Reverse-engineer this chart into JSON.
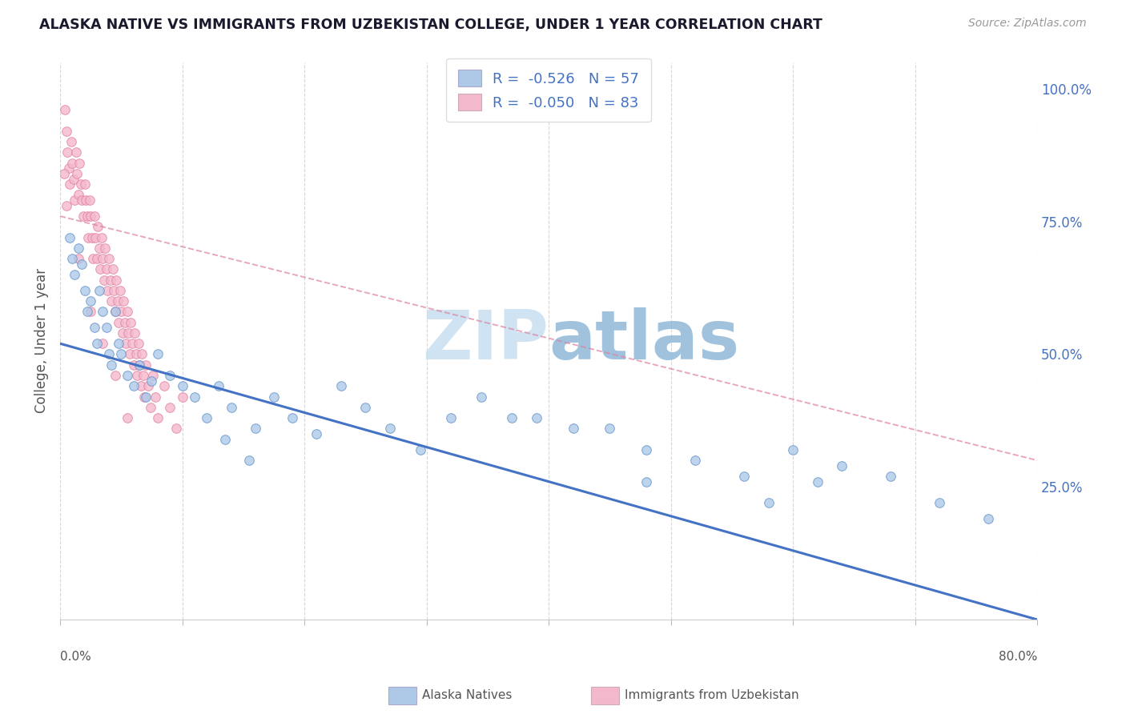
{
  "title": "ALASKA NATIVE VS IMMIGRANTS FROM UZBEKISTAN COLLEGE, UNDER 1 YEAR CORRELATION CHART",
  "source": "Source: ZipAtlas.com",
  "ylabel": "College, Under 1 year",
  "right_ytick_labels": [
    "25.0%",
    "50.0%",
    "75.0%",
    "100.0%"
  ],
  "right_ytick_values": [
    0.25,
    0.5,
    0.75,
    1.0
  ],
  "legend_r1": "-0.526",
  "legend_n1": "57",
  "legend_r2": "-0.050",
  "legend_n2": "83",
  "blue_face_color": "#aec8e8",
  "blue_edge_color": "#6090c8",
  "blue_line_color": "#4472c4",
  "pink_face_color": "#f4b8cc",
  "pink_edge_color": "#e080a0",
  "pink_line_color": "#e080a0",
  "background_color": "#ffffff",
  "grid_color": "#cccccc",
  "legend_text_color": "#4472c4",
  "watermark_color": "#c8dff0",
  "blue_scatter_x": [
    0.008,
    0.01,
    0.012,
    0.015,
    0.018,
    0.02,
    0.022,
    0.025,
    0.028,
    0.03,
    0.032,
    0.035,
    0.038,
    0.04,
    0.042,
    0.045,
    0.048,
    0.05,
    0.055,
    0.06,
    0.065,
    0.07,
    0.075,
    0.08,
    0.09,
    0.1,
    0.11,
    0.12,
    0.13,
    0.14,
    0.16,
    0.175,
    0.19,
    0.21,
    0.23,
    0.25,
    0.27,
    0.295,
    0.32,
    0.345,
    0.37,
    0.135,
    0.155,
    0.39,
    0.42,
    0.45,
    0.48,
    0.52,
    0.56,
    0.6,
    0.64,
    0.68,
    0.72,
    0.76,
    0.48,
    0.58,
    0.62
  ],
  "blue_scatter_y": [
    0.72,
    0.68,
    0.65,
    0.7,
    0.67,
    0.62,
    0.58,
    0.6,
    0.55,
    0.52,
    0.62,
    0.58,
    0.55,
    0.5,
    0.48,
    0.58,
    0.52,
    0.5,
    0.46,
    0.44,
    0.48,
    0.42,
    0.45,
    0.5,
    0.46,
    0.44,
    0.42,
    0.38,
    0.44,
    0.4,
    0.36,
    0.42,
    0.38,
    0.35,
    0.44,
    0.4,
    0.36,
    0.32,
    0.38,
    0.42,
    0.38,
    0.34,
    0.3,
    0.38,
    0.36,
    0.36,
    0.32,
    0.3,
    0.27,
    0.32,
    0.29,
    0.27,
    0.22,
    0.19,
    0.26,
    0.22,
    0.26
  ],
  "pink_scatter_x": [
    0.004,
    0.005,
    0.006,
    0.007,
    0.008,
    0.009,
    0.01,
    0.011,
    0.012,
    0.013,
    0.014,
    0.015,
    0.016,
    0.017,
    0.018,
    0.019,
    0.02,
    0.021,
    0.022,
    0.023,
    0.024,
    0.025,
    0.026,
    0.027,
    0.028,
    0.029,
    0.03,
    0.031,
    0.032,
    0.033,
    0.034,
    0.035,
    0.036,
    0.037,
    0.038,
    0.039,
    0.04,
    0.041,
    0.042,
    0.043,
    0.044,
    0.045,
    0.046,
    0.047,
    0.048,
    0.049,
    0.05,
    0.051,
    0.052,
    0.053,
    0.054,
    0.055,
    0.056,
    0.057,
    0.058,
    0.059,
    0.06,
    0.061,
    0.062,
    0.063,
    0.064,
    0.065,
    0.066,
    0.067,
    0.068,
    0.069,
    0.07,
    0.072,
    0.074,
    0.076,
    0.078,
    0.08,
    0.085,
    0.09,
    0.095,
    0.1,
    0.005,
    0.015,
    0.025,
    0.035,
    0.045,
    0.055,
    0.003
  ],
  "pink_scatter_y": [
    0.96,
    0.92,
    0.88,
    0.85,
    0.82,
    0.9,
    0.86,
    0.83,
    0.79,
    0.88,
    0.84,
    0.8,
    0.86,
    0.82,
    0.79,
    0.76,
    0.82,
    0.79,
    0.76,
    0.72,
    0.79,
    0.76,
    0.72,
    0.68,
    0.76,
    0.72,
    0.68,
    0.74,
    0.7,
    0.66,
    0.72,
    0.68,
    0.64,
    0.7,
    0.66,
    0.62,
    0.68,
    0.64,
    0.6,
    0.66,
    0.62,
    0.58,
    0.64,
    0.6,
    0.56,
    0.62,
    0.58,
    0.54,
    0.6,
    0.56,
    0.52,
    0.58,
    0.54,
    0.5,
    0.56,
    0.52,
    0.48,
    0.54,
    0.5,
    0.46,
    0.52,
    0.48,
    0.44,
    0.5,
    0.46,
    0.42,
    0.48,
    0.44,
    0.4,
    0.46,
    0.42,
    0.38,
    0.44,
    0.4,
    0.36,
    0.42,
    0.78,
    0.68,
    0.58,
    0.52,
    0.46,
    0.38,
    0.84
  ],
  "blue_trend_x": [
    0.0,
    0.8
  ],
  "blue_trend_y": [
    0.52,
    0.0
  ],
  "pink_trend_x": [
    0.0,
    0.8
  ],
  "pink_trend_y": [
    0.76,
    0.3
  ],
  "xlim": [
    0.0,
    0.8
  ],
  "ylim": [
    0.0,
    1.05
  ],
  "xtick_positions": [
    0.0,
    0.1,
    0.2,
    0.3,
    0.4,
    0.5,
    0.6,
    0.7,
    0.8
  ]
}
